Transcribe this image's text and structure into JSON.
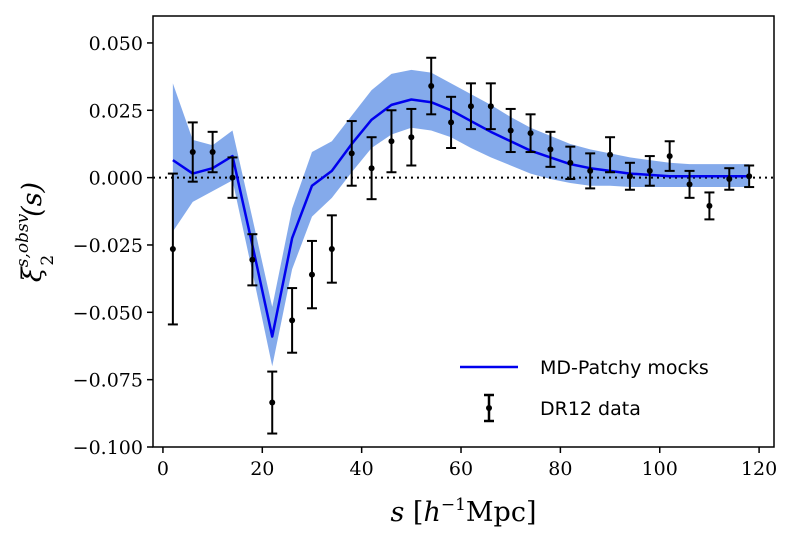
{
  "chart_data": {
    "type": "line",
    "xlabel": "s [h⁻¹Mpc]",
    "xlabel_parts": {
      "var": "s",
      "open": " [",
      "h": "h",
      "exp": "−1",
      "unit": "Mpc",
      "close": "]"
    },
    "ylabel": "ξ₂^{s,obsv}(s)",
    "ylabel_parts": {
      "xi": "ξ",
      "sub": "2",
      "sup": "s,obsv",
      "arg": "(s)"
    },
    "xlim": [
      -2,
      123
    ],
    "ylim": [
      -0.1,
      0.06
    ],
    "xticks": [
      0,
      20,
      40,
      60,
      80,
      100,
      120
    ],
    "xtick_labels": [
      "0",
      "20",
      "40",
      "60",
      "80",
      "100",
      "120"
    ],
    "yticks": [
      0.05,
      0.025,
      0.0,
      -0.025,
      -0.05,
      -0.075,
      -0.1
    ],
    "ytick_labels": [
      "0.050",
      "0.025",
      "0.000",
      "−0.025",
      "−0.050",
      "−0.075",
      "−0.100"
    ],
    "reference_line": {
      "y": 0.0,
      "style": "dotted"
    },
    "legend": {
      "position": "bottom-right",
      "entries": [
        "MD-Patchy mocks",
        "DR12 data"
      ]
    },
    "series": [
      {
        "name": "MD-Patchy mocks",
        "kind": "line_with_band",
        "color": "#0000ee",
        "band_color": "#6f9be8",
        "x": [
          2,
          6,
          10,
          14,
          18,
          22,
          26,
          30,
          34,
          38,
          42,
          46,
          50,
          54,
          58,
          62,
          66,
          70,
          74,
          78,
          82,
          86,
          90,
          94,
          98,
          102,
          106,
          110,
          114,
          118
        ],
        "y": [
          0.0065,
          0.0015,
          0.0035,
          0.008,
          -0.025,
          -0.059,
          -0.0225,
          -0.003,
          0.0025,
          0.0125,
          0.0215,
          0.027,
          0.029,
          0.028,
          0.025,
          0.021,
          0.017,
          0.0135,
          0.01,
          0.0075,
          0.005,
          0.0035,
          0.0025,
          0.0015,
          0.001,
          0.0005,
          0.0005,
          0.0005,
          0.0005,
          0.0005
        ],
        "lower": [
          -0.02,
          -0.009,
          -0.005,
          -0.001,
          -0.035,
          -0.07,
          -0.034,
          -0.0145,
          -0.0075,
          0.002,
          0.011,
          0.016,
          0.0185,
          0.0175,
          0.015,
          0.011,
          0.0075,
          0.0045,
          0.0015,
          -0.0005,
          -0.002,
          -0.003,
          -0.003,
          -0.0035,
          -0.0035,
          -0.0035,
          -0.0035,
          -0.0035,
          -0.0035,
          -0.0035
        ],
        "upper": [
          0.035,
          0.014,
          0.012,
          0.0175,
          -0.015,
          -0.048,
          -0.0115,
          0.0095,
          0.0135,
          0.023,
          0.0325,
          0.0385,
          0.04,
          0.039,
          0.035,
          0.031,
          0.027,
          0.0225,
          0.0185,
          0.0155,
          0.0125,
          0.0105,
          0.009,
          0.0075,
          0.0065,
          0.0055,
          0.005,
          0.005,
          0.005,
          0.005
        ]
      },
      {
        "name": "DR12 data",
        "kind": "errorbar",
        "color": "#000000",
        "x": [
          2,
          6,
          10,
          14,
          18,
          22,
          26,
          30,
          34,
          38,
          42,
          46,
          50,
          54,
          58,
          62,
          66,
          70,
          74,
          78,
          82,
          86,
          90,
          94,
          98,
          102,
          106,
          110,
          114,
          118
        ],
        "y": [
          -0.0265,
          0.0095,
          0.0095,
          0.0,
          -0.0305,
          -0.0835,
          -0.053,
          -0.036,
          -0.0265,
          0.009,
          0.0035,
          0.0135,
          0.015,
          0.034,
          0.0205,
          0.0265,
          0.0265,
          0.0175,
          0.0165,
          0.0105,
          0.0055,
          0.0025,
          0.0085,
          0.0005,
          0.0025,
          0.008,
          -0.0025,
          -0.0105,
          -0.0005,
          0.0005
        ],
        "err": [
          0.028,
          0.011,
          0.0075,
          0.0075,
          0.0095,
          0.0115,
          0.012,
          0.0125,
          0.0125,
          0.012,
          0.0115,
          0.0115,
          0.0105,
          0.0105,
          0.0095,
          0.0085,
          0.0085,
          0.008,
          0.007,
          0.0065,
          0.006,
          0.0065,
          0.0065,
          0.005,
          0.0055,
          0.0055,
          0.005,
          0.005,
          0.004,
          0.004
        ]
      }
    ]
  }
}
